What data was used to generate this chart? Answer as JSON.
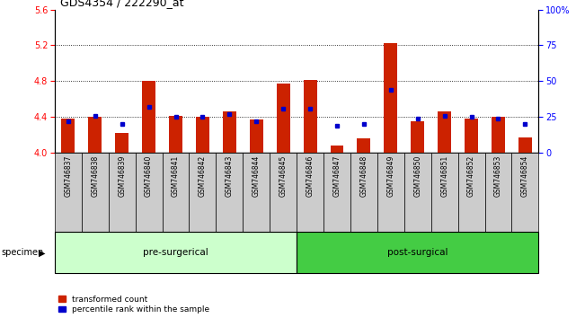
{
  "title": "GDS4354 / 222290_at",
  "samples": [
    "GSM746837",
    "GSM746838",
    "GSM746839",
    "GSM746840",
    "GSM746841",
    "GSM746842",
    "GSM746843",
    "GSM746844",
    "GSM746845",
    "GSM746846",
    "GSM746847",
    "GSM746848",
    "GSM746849",
    "GSM746850",
    "GSM746851",
    "GSM746852",
    "GSM746853",
    "GSM746854"
  ],
  "red_values": [
    4.38,
    4.4,
    4.22,
    4.8,
    4.41,
    4.4,
    4.46,
    4.37,
    4.77,
    4.81,
    4.08,
    4.16,
    5.22,
    4.35,
    4.46,
    4.38,
    4.4,
    4.17
  ],
  "blue_percentiles": [
    22,
    26,
    20,
    32,
    25,
    25,
    27,
    22,
    31,
    31,
    19,
    20,
    44,
    24,
    26,
    25,
    24,
    20
  ],
  "ylim_left": [
    4.0,
    5.6
  ],
  "ylim_right": [
    0,
    100
  ],
  "yticks_left": [
    4.0,
    4.4,
    4.8,
    5.2,
    5.6
  ],
  "yticks_right": [
    0,
    25,
    50,
    75,
    100
  ],
  "pre_surgical_count": 9,
  "post_surgical_count": 9,
  "bar_color": "#cc2200",
  "dot_color": "#0000cc",
  "pre_bg": "#ccffcc",
  "post_bg": "#44cc44",
  "xticklabel_bg": "#cccccc",
  "legend_red_label": "transformed count",
  "legend_blue_label": "percentile rank within the sample",
  "specimen_label": "specimen",
  "pre_label": "pre-surgerical",
  "post_label": "post-surgical",
  "grid_lines": [
    4.4,
    4.8,
    5.2
  ],
  "title_fontsize": 9,
  "tick_fontsize": 7,
  "bar_width": 0.5
}
